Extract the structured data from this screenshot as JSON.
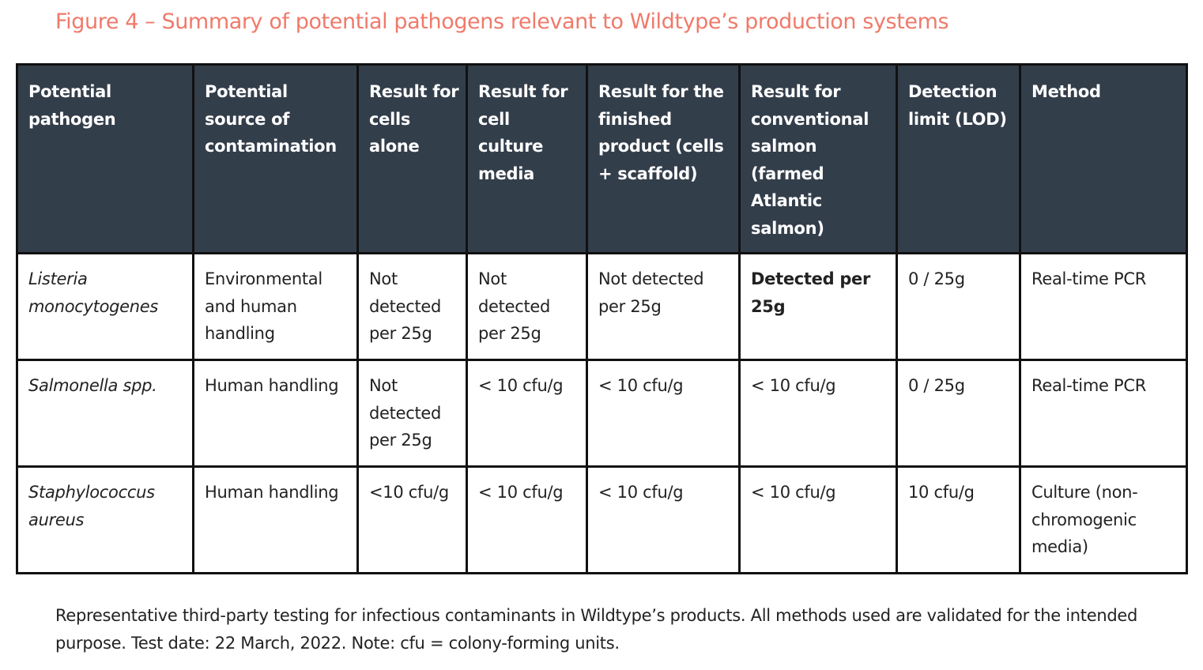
{
  "figure": {
    "title": "Figure 4 – Summary of potential pathogens relevant to Wildtype’s production systems",
    "title_color": "#ef7a6b",
    "header_bg": "#333e4b"
  },
  "table": {
    "headers": [
      "Potential pathogen",
      "Potential source of contamination",
      "Result for cells alone",
      "Result for cell culture media",
      "Result for the finished product (cells + scaffold)",
      "Result for conventional salmon (farmed Atlantic salmon)",
      "Detection limit (LOD)",
      "Method"
    ],
    "rows": [
      [
        "Listeria monocytogenes",
        "Environmental and human handling",
        "Not detected per 25g",
        "Not detected per 25g",
        "Not detected per 25g",
        "Detected per 25g",
        "0 / 25g",
        "Real-time PCR"
      ],
      [
        "Salmonella spp.",
        "Human handling",
        "Not detected per 25g",
        "< 10 cfu/g",
        "< 10 cfu/g",
        "< 10 cfu/g",
        "0 / 25g",
        "Real-time PCR"
      ],
      [
        "Staphylococcus aureus",
        "Human handling",
        "<10 cfu/g",
        "< 10 cfu/g",
        "< 10 cfu/g",
        "< 10 cfu/g",
        "10 cfu/g",
        "Culture (non-chromogenic media)"
      ]
    ]
  },
  "caption": "Representative third-party testing for infectious contaminants in Wildtype’s products. All methods used are validated for the intended purpose. Test date: 22 March, 2022. Note: cfu = colony-forming units."
}
